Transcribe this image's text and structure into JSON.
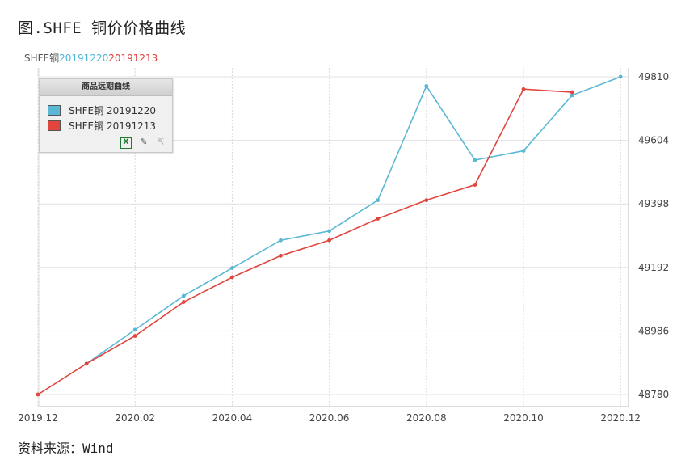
{
  "figure": {
    "title": "图.SHFE 铜价价格曲线",
    "source": "资料来源：Wind"
  },
  "chart_data": {
    "type": "line",
    "subtitle_parts": [
      "SHFE铜",
      "20191220",
      "20191213"
    ],
    "x_ticks": [
      "2019.12",
      "2020.02",
      "2020.04",
      "2020.06",
      "2020.08",
      "2020.10",
      "2020.12"
    ],
    "y_ticks": [
      48780,
      48986,
      49192,
      49398,
      49604,
      49810
    ],
    "ylim": [
      48760,
      49850
    ],
    "grid": true,
    "legend": {
      "title": "商品远期曲线",
      "placement": "top-left",
      "tools": [
        "excel-icon",
        "edit-chart-icon",
        "export-icon"
      ]
    },
    "series": [
      {
        "name": "SHFE铜 20191220",
        "color": "#5bb8d4",
        "x": [
          "2020.01",
          "2020.02",
          "2020.03",
          "2020.04",
          "2020.05",
          "2020.06",
          "2020.07",
          "2020.08",
          "2020.09",
          "2020.10",
          "2020.11",
          "2020.12"
        ],
        "values": [
          48880,
          48990,
          49100,
          49190,
          49280,
          49310,
          49410,
          49780,
          49540,
          49570,
          49750,
          49810
        ]
      },
      {
        "name": "SHFE铜 20191213",
        "color": "#e0463d",
        "x": [
          "2019.12",
          "2020.01",
          "2020.02",
          "2020.03",
          "2020.04",
          "2020.05",
          "2020.06",
          "2020.07",
          "2020.08",
          "2020.09",
          "2020.10",
          "2020.11"
        ],
        "values": [
          48780,
          48880,
          48970,
          49080,
          49160,
          49230,
          49280,
          49350,
          49410,
          49460,
          49770,
          49760
        ]
      }
    ]
  }
}
